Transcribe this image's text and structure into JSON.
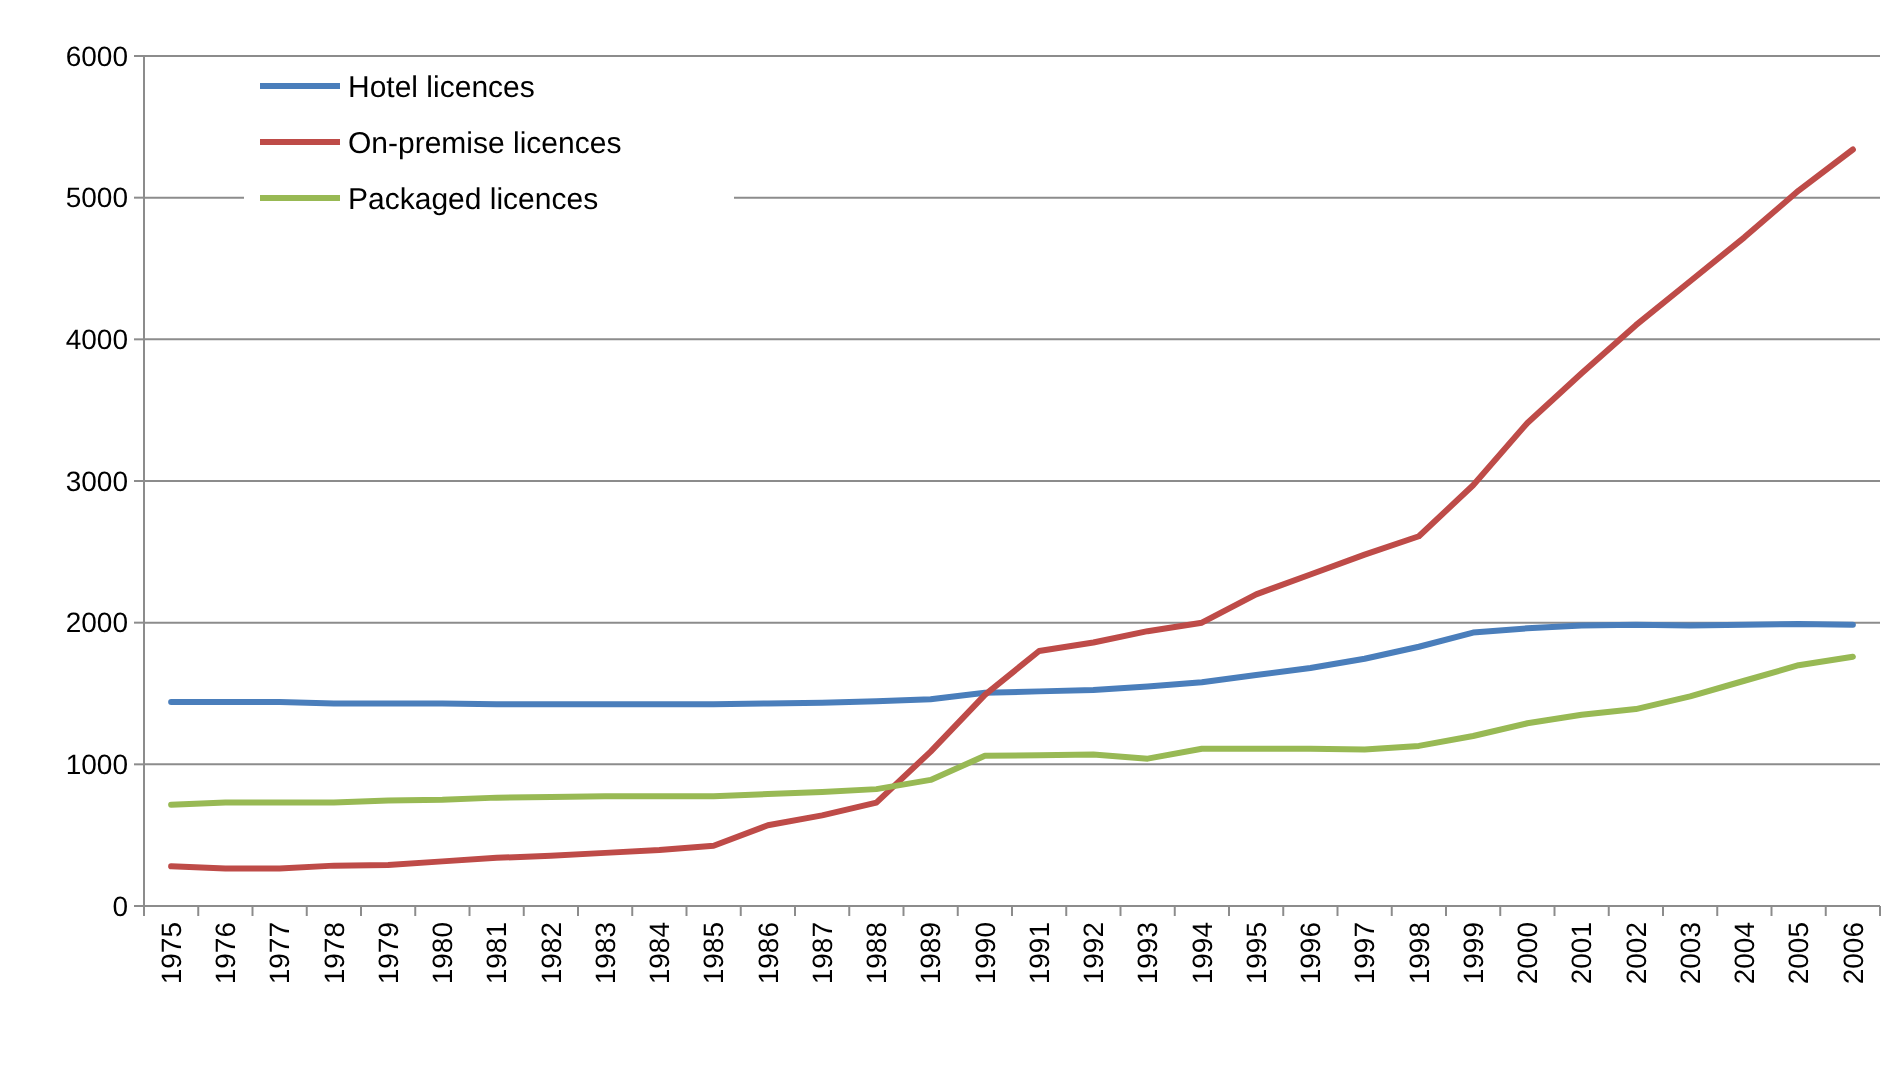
{
  "chart_data": {
    "type": "line",
    "categories": [
      "1975",
      "1976",
      "1977",
      "1978",
      "1979",
      "1980",
      "1981",
      "1982",
      "1983",
      "1984",
      "1985",
      "1986",
      "1987",
      "1988",
      "1989",
      "1990",
      "1991",
      "1992",
      "1993",
      "1994",
      "1995",
      "1996",
      "1997",
      "1998",
      "1999",
      "2000",
      "2001",
      "2002",
      "2003",
      "2004",
      "2005",
      "2006"
    ],
    "series": [
      {
        "name": "Hotel licences",
        "color": "#4a7ebb",
        "values": [
          1440,
          1440,
          1440,
          1430,
          1430,
          1430,
          1425,
          1425,
          1425,
          1425,
          1425,
          1430,
          1435,
          1445,
          1460,
          1505,
          1515,
          1525,
          1550,
          1580,
          1630,
          1680,
          1745,
          1830,
          1930,
          1960,
          1980,
          1985,
          1980,
          1985,
          1990,
          1985
        ]
      },
      {
        "name": "On-premise licences",
        "color": "#be4b48",
        "values": [
          280,
          265,
          265,
          285,
          290,
          315,
          340,
          355,
          375,
          395,
          425,
          570,
          640,
          730,
          1090,
          1490,
          1800,
          1860,
          1940,
          2000,
          2200,
          2340,
          2480,
          2610,
          2970,
          3410,
          3760,
          4100,
          4410,
          4720,
          5050,
          5340
        ]
      },
      {
        "name": "Packaged licences",
        "color": "#98b954",
        "values": [
          715,
          730,
          730,
          730,
          745,
          750,
          765,
          770,
          775,
          775,
          775,
          790,
          805,
          825,
          890,
          1060,
          1065,
          1070,
          1040,
          1110,
          1110,
          1110,
          1105,
          1130,
          1200,
          1290,
          1350,
          1390,
          1480,
          1590,
          1700,
          1760
        ]
      }
    ],
    "ylim": [
      0,
      6000
    ],
    "yticks": [
      0,
      1000,
      2000,
      3000,
      4000,
      5000,
      6000
    ],
    "grid": "y",
    "legend": "top left",
    "marker": "none",
    "line_style": "solid"
  }
}
